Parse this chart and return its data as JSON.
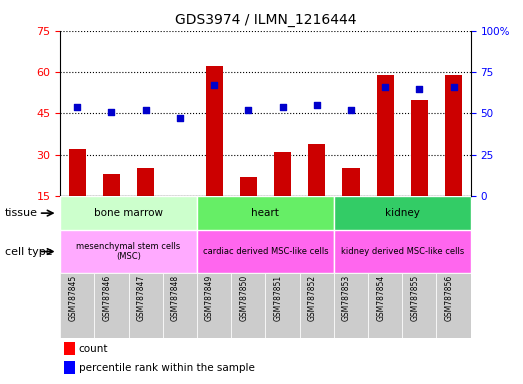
{
  "title": "GDS3974 / ILMN_1216444",
  "samples": [
    "GSM787845",
    "GSM787846",
    "GSM787847",
    "GSM787848",
    "GSM787849",
    "GSM787850",
    "GSM787851",
    "GSM787852",
    "GSM787853",
    "GSM787854",
    "GSM787855",
    "GSM787856"
  ],
  "counts": [
    32,
    23,
    25,
    15,
    62,
    22,
    31,
    34,
    25,
    59,
    50,
    59
  ],
  "percentiles": [
    54,
    51,
    52,
    47,
    67,
    52,
    54,
    55,
    52,
    66,
    65,
    66
  ],
  "left_ylim": [
    15,
    75
  ],
  "left_yticks": [
    15,
    30,
    45,
    60,
    75
  ],
  "right_ylim": [
    0,
    100
  ],
  "right_yticks": [
    0,
    25,
    50,
    75,
    100
  ],
  "right_yticklabels": [
    "0",
    "25",
    "50",
    "75",
    "100%"
  ],
  "bar_color": "#cc0000",
  "dot_color": "#0000cc",
  "tissue_groups": [
    {
      "label": "bone marrow",
      "start": 0,
      "end": 4,
      "color": "#ccffcc"
    },
    {
      "label": "heart",
      "start": 4,
      "end": 8,
      "color": "#66ee66"
    },
    {
      "label": "kidney",
      "start": 8,
      "end": 12,
      "color": "#33cc66"
    }
  ],
  "cell_type_groups": [
    {
      "label": "mesenchymal stem cells\n(MSC)",
      "start": 0,
      "end": 4,
      "color": "#ffaaff"
    },
    {
      "label": "cardiac derived MSC-like cells",
      "start": 4,
      "end": 8,
      "color": "#ff66ee"
    },
    {
      "label": "kidney derived MSC-like cells",
      "start": 8,
      "end": 12,
      "color": "#ff66ee"
    }
  ],
  "tissue_label": "tissue",
  "cell_type_label": "cell type",
  "legend_count": "count",
  "legend_percentile": "percentile rank within the sample",
  "xtick_bg": "#cccccc",
  "plot_bg": "#ffffff"
}
